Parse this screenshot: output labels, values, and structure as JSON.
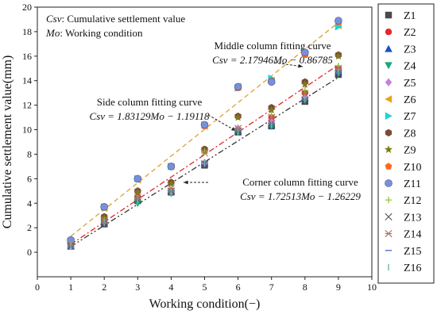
{
  "chart_data": {
    "type": "scatter",
    "xlabel": "Working condition(−)",
    "ylabel": "Cumulative settlement value(mm)",
    "xlim": [
      0,
      10
    ],
    "ylim": [
      -2,
      20
    ],
    "x_ticks": [
      0,
      1,
      2,
      3,
      4,
      5,
      6,
      7,
      8,
      9,
      10
    ],
    "y_ticks": [
      0,
      2,
      4,
      6,
      8,
      10,
      12,
      14,
      16,
      18,
      20
    ],
    "x_tick_labels": [
      "0",
      "1",
      "2",
      "3",
      "4",
      "5",
      "6",
      "7",
      "8",
      "9",
      "10"
    ],
    "y_tick_labels": [
      "0",
      "2",
      "4",
      "6",
      "8",
      "10",
      "12",
      "14",
      "16",
      "18",
      "20"
    ],
    "notes": [
      {
        "abbr": "Csv",
        "text": ": Cumulative settlement value"
      },
      {
        "abbr": "Mo",
        "text": ": Working condition"
      }
    ],
    "fits": [
      {
        "label": "Middle column fitting curve",
        "equation": "Csv = 2.17946Mo − 0.86785",
        "slope": 2.17946,
        "intercept": -0.86785,
        "color": "#e0a030",
        "dash": "6,4"
      },
      {
        "label": "Side column fitting curve",
        "equation": "Csv = 1.83129Mo − 1.19118",
        "slope": 1.83129,
        "intercept": -1.19118,
        "color": "#dd2a2a",
        "dash": "7,3,2,3"
      },
      {
        "label": "Corner column fitting curve",
        "equation": "Csv = 1.72513Mo − 1.26229",
        "slope": 1.72513,
        "intercept": -1.26229,
        "color": "#333333",
        "dash": "7,3,2,3,2,3"
      }
    ],
    "x": [
      1,
      2,
      3,
      4,
      5,
      6,
      7,
      8,
      9
    ],
    "series": [
      {
        "name": "Z1",
        "marker": "square",
        "color": "#4a4a4a",
        "values": [
          0.5,
          2.3,
          4.2,
          4.9,
          7.1,
          9.8,
          10.3,
          12.3,
          14.5
        ]
      },
      {
        "name": "Z2",
        "marker": "circle",
        "color": "#e8262b",
        "values": [
          0.7,
          2.8,
          4.5,
          5.0,
          8.4,
          10.0,
          11.0,
          13.0,
          15.0
        ]
      },
      {
        "name": "Z3",
        "marker": "triangle-up",
        "color": "#1e50c8",
        "values": [
          0.5,
          2.5,
          4.3,
          5.0,
          7.3,
          9.9,
          10.4,
          12.6,
          14.7
        ]
      },
      {
        "name": "Z4",
        "marker": "triangle-down",
        "color": "#19a878",
        "values": [
          0.6,
          2.4,
          4.0,
          4.8,
          7.2,
          9.8,
          10.3,
          12.4,
          14.6
        ]
      },
      {
        "name": "Z5",
        "marker": "diamond",
        "color": "#c77fdc",
        "values": [
          0.5,
          2.5,
          4.4,
          5.0,
          7.3,
          10.1,
          10.6,
          12.6,
          14.8
        ]
      },
      {
        "name": "Z6",
        "marker": "triangle-left",
        "color": "#e8a418",
        "values": [
          0.9,
          3.6,
          5.9,
          7.0,
          10.3,
          13.5,
          14.0,
          16.2,
          18.5
        ]
      },
      {
        "name": "Z7",
        "marker": "triangle-right",
        "color": "#1ed4d6",
        "values": [
          0.9,
          3.7,
          6.0,
          7.0,
          10.4,
          13.4,
          14.2,
          16.3,
          18.4
        ]
      },
      {
        "name": "Z8",
        "marker": "hexagon",
        "color": "#7e4a38",
        "values": [
          0.8,
          2.9,
          5.0,
          5.7,
          8.4,
          11.1,
          11.8,
          13.9,
          16.1
        ]
      },
      {
        "name": "Z9",
        "marker": "star",
        "color": "#7b7b18",
        "values": [
          0.7,
          2.8,
          4.9,
          5.6,
          8.3,
          11.0,
          11.6,
          13.7,
          16.0
        ]
      },
      {
        "name": "Z10",
        "marker": "pentagon",
        "color": "#ff6a1e",
        "values": [
          1.0,
          3.7,
          6.0,
          7.0,
          10.3,
          13.4,
          14.0,
          16.1,
          18.8
        ]
      },
      {
        "name": "Z11",
        "marker": "sphere",
        "color": "#7b8fd6",
        "values": [
          1.0,
          3.7,
          6.0,
          7.0,
          10.4,
          13.5,
          13.9,
          16.3,
          18.9
        ]
      },
      {
        "name": "Z12",
        "marker": "plus",
        "color": "#8fbf2f",
        "values": [
          0.6,
          2.6,
          4.4,
          5.1,
          8.2,
          10.0,
          11.2,
          13.2,
          15.2
        ]
      },
      {
        "name": "Z13",
        "marker": "cross",
        "color": "#555555",
        "values": [
          0.5,
          2.4,
          4.3,
          5.0,
          7.2,
          9.9,
          10.5,
          12.4,
          14.6
        ]
      },
      {
        "name": "Z14",
        "marker": "asterisk",
        "color": "#b07060",
        "values": [
          0.6,
          2.6,
          4.5,
          5.2,
          8.1,
          10.1,
          11.0,
          12.9,
          15.0
        ]
      },
      {
        "name": "Z15",
        "marker": "hline",
        "color": "#5a6fc0",
        "values": [
          0.5,
          2.5,
          4.3,
          5.0,
          7.4,
          9.9,
          10.5,
          12.5,
          14.8
        ]
      },
      {
        "name": "Z16",
        "marker": "vline",
        "color": "#6fb89f",
        "values": [
          0.5,
          2.4,
          4.2,
          4.9,
          7.3,
          9.8,
          10.4,
          12.5,
          14.7
        ]
      }
    ]
  }
}
